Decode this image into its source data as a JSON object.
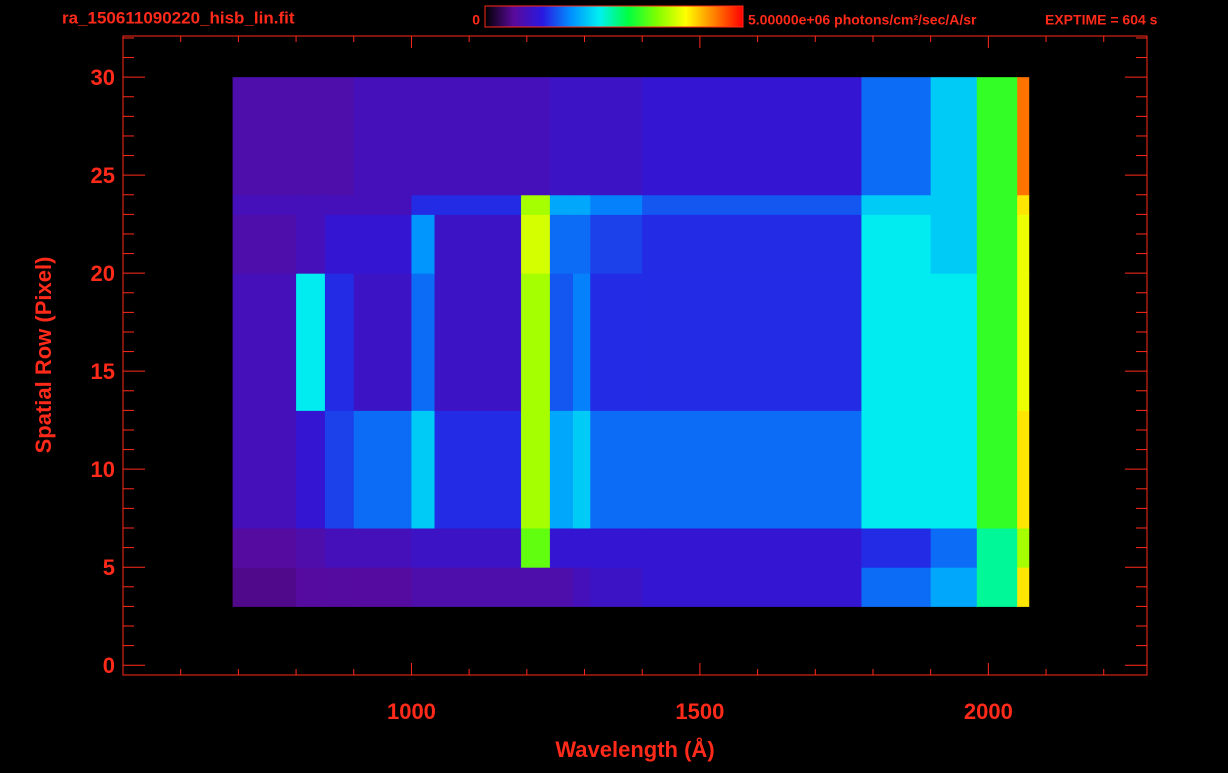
{
  "chart_data": {
    "type": "heatmap",
    "title": "ra_150611090220_hisb_lin.fit",
    "colorbar_unit": "photons/cm²/sec/A/sr",
    "annotation": "EXPTIME = 604 s",
    "xlabel": "Wavelength (Å)",
    "ylabel": "Spatial Row (Pixel)",
    "xlim": [
      500,
      2275
    ],
    "ylim": [
      -0.5,
      32.1
    ],
    "xticks": [
      1000,
      1500,
      2000
    ],
    "yticks": [
      0,
      5,
      10,
      15,
      20,
      25,
      30
    ],
    "xminorticks": [
      600,
      700,
      800,
      900,
      1100,
      1200,
      1300,
      1400,
      1600,
      1700,
      1800,
      1900,
      2100,
      2200
    ],
    "yminorticks": [
      1,
      2,
      3,
      4,
      6,
      7,
      8,
      9,
      11,
      12,
      13,
      14,
      16,
      17,
      18,
      19,
      21,
      22,
      23,
      24,
      26,
      27,
      28,
      29,
      31,
      32
    ],
    "clim": [
      0,
      5000000
    ],
    "cticks": [
      0,
      {
        "value": 5000000,
        "label": "5.00000e+06"
      }
    ],
    "colormap": [
      "#000000",
      "#5a0a9a",
      "#2a18e0",
      "#0090ff",
      "#00f0f0",
      "#00ff40",
      "#80ff00",
      "#ffff00",
      "#ff8000",
      "#ff0000"
    ],
    "color": "#ff2a1a",
    "x_edges": [
      690,
      800,
      850,
      900,
      1000,
      1040,
      1190,
      1240,
      1280,
      1310,
      1400,
      1780,
      1900,
      1980,
      2050,
      2070
    ],
    "y_edges": [
      3,
      5,
      7,
      13,
      20,
      23,
      24,
      30
    ],
    "z": [
      [
        500000,
        600000,
        600000,
        600000,
        700000,
        700000,
        700000,
        700000,
        800000,
        900000,
        1000000,
        1500000,
        1800000,
        2500000,
        4000000
      ],
      [
        600000,
        700000,
        800000,
        800000,
        900000,
        900000,
        3200000,
        1000000,
        1000000,
        1000000,
        1000000,
        1200000,
        1500000,
        2500000,
        3500000
      ],
      [
        800000,
        1000000,
        1300000,
        1500000,
        2000000,
        1200000,
        3500000,
        1800000,
        2000000,
        1500000,
        1500000,
        2200000,
        2200000,
        3000000,
        4000000
      ],
      [
        800000,
        2200000,
        1200000,
        900000,
        1500000,
        900000,
        3500000,
        1400000,
        1600000,
        1200000,
        1200000,
        2200000,
        2200000,
        3000000,
        3800000
      ],
      [
        700000,
        800000,
        1000000,
        1000000,
        1700000,
        900000,
        3700000,
        1500000,
        1500000,
        1300000,
        1200000,
        2200000,
        2000000,
        3000000,
        3800000
      ],
      [
        800000,
        800000,
        800000,
        800000,
        1200000,
        1200000,
        3500000,
        1800000,
        1800000,
        1600000,
        1400000,
        2000000,
        2000000,
        3000000,
        4000000
      ],
      [
        700000,
        700000,
        700000,
        800000,
        800000,
        800000,
        800000,
        900000,
        900000,
        900000,
        1000000,
        1500000,
        2000000,
        3000000,
        4500000
      ]
    ]
  }
}
